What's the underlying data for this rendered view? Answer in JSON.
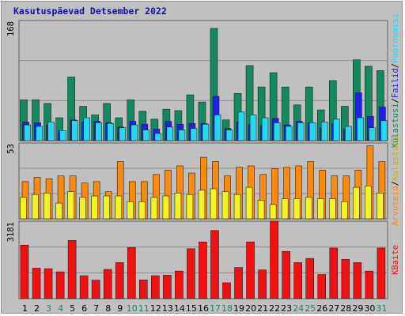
{
  "chart_data": {
    "type": "bar",
    "title": "Kasutuspäevad Detsember 2022",
    "days": [
      "1",
      "2",
      "3",
      "4",
      "5",
      "6",
      "7",
      "8",
      "9",
      "10",
      "11",
      "12",
      "13",
      "14",
      "15",
      "16",
      "17",
      "18",
      "19",
      "20",
      "21",
      "22",
      "23",
      "24",
      "25",
      "26",
      "27",
      "28",
      "29",
      "30",
      "31"
    ],
    "weekend_days": [
      "3",
      "4",
      "10",
      "11",
      "17",
      "18",
      "24",
      "25",
      "31"
    ],
    "colors": {
      "kulastusi": "#138a5d",
      "failid": "#2020e6",
      "poordumisi": "#22d8f2",
      "arvuteid": "#ff8a08",
      "kulastusi_yellow": "#f4f420",
      "baite": "#f21010",
      "title": "#1010a0",
      "weekday_label": "#000000",
      "weekend_label": "#138a5d"
    },
    "panels": [
      {
        "ymax_label": "168",
        "ymax": 168,
        "right_label": {
          "sep1": "/",
          "part1": "Failid",
          "sep2": "/",
          "part2": "Pöördumisi",
          "part0": "Külastusi"
        },
        "series": [
          {
            "name": "Külastusi",
            "values": [
              57,
              57,
              52,
              32,
              89,
              48,
              36,
              52,
              32,
              57,
              41,
              30,
              44,
              42,
              64,
              54,
              157,
              29,
              66,
              105,
              75,
              95,
              75,
              50,
              75,
              43,
              84,
              48,
              113,
              104,
              98
            ]
          },
          {
            "name": "Failid",
            "values": [
              26,
              25,
              22,
              14,
              29,
              26,
              27,
              25,
              19,
              27,
              23,
              16,
              27,
              23,
              24,
              24,
              62,
              17,
              26,
              22,
              21,
              31,
              22,
              27,
              25,
              18,
              24,
              16,
              67,
              34,
              47
            ]
          },
          {
            "name": "Pöördumisi",
            "values": [
              22,
              20,
              26,
              14,
              28,
              32,
              25,
              24,
              18,
              22,
              15,
              10,
              19,
              15,
              17,
              23,
              36,
              15,
              40,
              36,
              32,
              25,
              20,
              25,
              25,
              26,
              30,
              20,
              32,
              18,
              28
            ]
          }
        ]
      },
      {
        "ymax_label": "53",
        "ymax": 53,
        "right_label": {
          "part0": "Arvuteid",
          "sep1": "/",
          "part1": "Külastusi"
        },
        "series": [
          {
            "name": "Arvuteid",
            "values": [
              26,
              29,
              28,
              30,
              30,
              25,
              26,
              19,
              40,
              26,
              26,
              31,
              34,
              37,
              32,
              43,
              40,
              30,
              36,
              37,
              31,
              35,
              36,
              37,
              40,
              34,
              30,
              30,
              34,
              51,
              40
            ]
          },
          {
            "name": "Külastusi",
            "values": [
              15,
              17,
              18,
              11,
              19,
              15,
              16,
              16,
              16,
              12,
              12,
              15,
              16,
              18,
              17,
              20,
              21,
              19,
              17,
              22,
              13,
              10,
              14,
              14,
              15,
              14,
              14,
              12,
              22,
              23,
              18
            ]
          }
        ]
      },
      {
        "ymax_label": "3181",
        "ymax": 3181,
        "right_label": {
          "part0": "KBaite"
        },
        "series": [
          {
            "name": "KBaite",
            "values": [
              2200,
              1250,
              1230,
              1100,
              2390,
              940,
              760,
              1200,
              1480,
              2100,
              770,
              940,
              960,
              1130,
              2050,
              2330,
              2800,
              650,
              1280,
              2330,
              1180,
              3181,
              1940,
              1480,
              1650,
              990,
              2080,
              1610,
              1480,
              1130,
              2080
            ]
          }
        ]
      }
    ]
  }
}
